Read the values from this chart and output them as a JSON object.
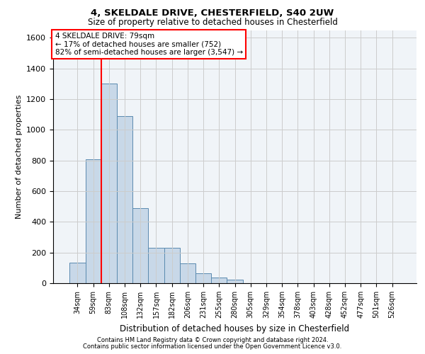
{
  "title1": "4, SKELDALE DRIVE, CHESTERFIELD, S40 2UW",
  "title2": "Size of property relative to detached houses in Chesterfield",
  "xlabel": "Distribution of detached houses by size in Chesterfield",
  "ylabel": "Number of detached properties",
  "footer1": "Contains HM Land Registry data © Crown copyright and database right 2024.",
  "footer2": "Contains public sector information licensed under the Open Government Licence v3.0.",
  "annotation_line1": "4 SKELDALE DRIVE: 79sqm",
  "annotation_line2": "← 17% of detached houses are smaller (752)",
  "annotation_line3": "82% of semi-detached houses are larger (3,547) →",
  "bar_labels": [
    "34sqm",
    "59sqm",
    "83sqm",
    "108sqm",
    "132sqm",
    "157sqm",
    "182sqm",
    "206sqm",
    "231sqm",
    "255sqm",
    "280sqm",
    "305sqm",
    "329sqm",
    "354sqm",
    "378sqm",
    "403sqm",
    "428sqm",
    "452sqm",
    "477sqm",
    "501sqm",
    "526sqm"
  ],
  "bar_values": [
    135,
    810,
    1300,
    1090,
    490,
    230,
    230,
    130,
    65,
    35,
    25,
    0,
    0,
    0,
    0,
    0,
    0,
    0,
    0,
    0,
    0
  ],
  "bar_color": "#c8d8e8",
  "bar_edge_color": "#5a8ab0",
  "bar_width": 1.0,
  "vline_x": 1.5,
  "vline_color": "red",
  "ylim": [
    0,
    1650
  ],
  "yticks": [
    0,
    200,
    400,
    600,
    800,
    1000,
    1200,
    1400,
    1600
  ],
  "grid_color": "#cccccc",
  "annotation_box_color": "red",
  "bg_color": "#f0f4f8",
  "title1_fontsize": 9.5,
  "title2_fontsize": 8.5,
  "ylabel_fontsize": 8,
  "xlabel_fontsize": 8.5,
  "tick_fontsize": 7,
  "footer_fontsize": 6,
  "ann_fontsize": 7.5
}
